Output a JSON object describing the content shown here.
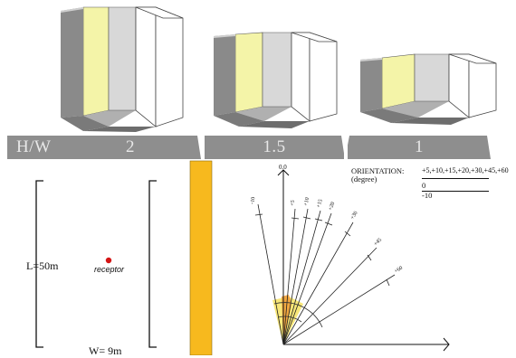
{
  "header": {
    "hw_label": "H/W",
    "ratios": [
      "2",
      "1.5",
      "1"
    ]
  },
  "plan": {
    "length_label": "L=50m",
    "width_label": "W= 9m",
    "receptor_label": "receptor"
  },
  "orientation": {
    "title": "ORIENTATION:",
    "unit": "(degree)",
    "values_positive": "+5,+10,+15,+20,+30,+45,+60",
    "values_zero": "0",
    "values_negative": "-10",
    "fan_labels": {
      "zero": "0.0",
      "m10": "-10",
      "p5": "+5",
      "p10": "+10",
      "p15": "+15",
      "p20": "+20",
      "p30": "+30",
      "p45": "+45",
      "p60": "+60"
    }
  },
  "colors": {
    "wall_front": "#8a8a8a",
    "wall_dark": "#6f6f6f",
    "inner_wall": "#f4f4a8",
    "floor": "#b9b9b9",
    "band": "#8e8e8e",
    "street": "#f7b91e",
    "receptor": "#d41414"
  }
}
